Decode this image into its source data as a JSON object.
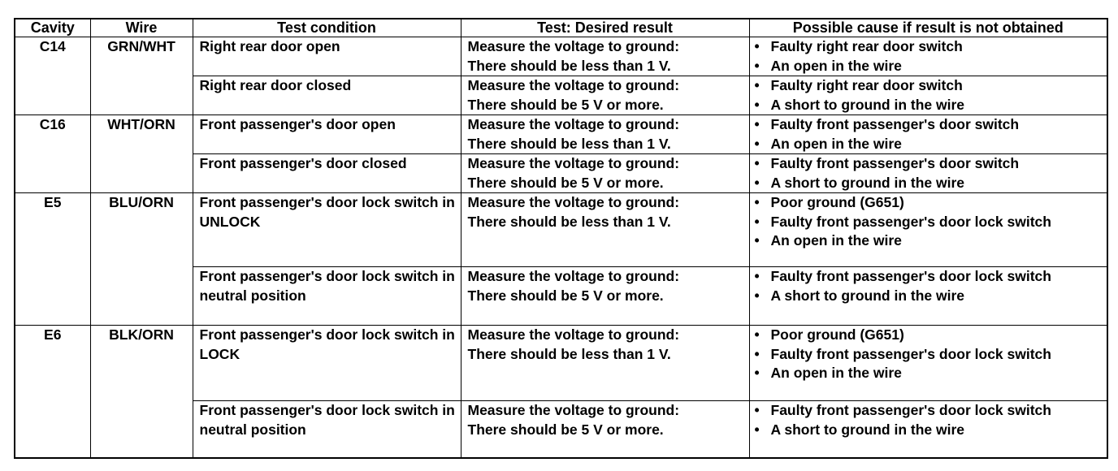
{
  "headers": [
    "Cavity",
    "Wire",
    "Test condition",
    "Test: Desired result",
    "Possible cause if result is not obtained"
  ],
  "groups": [
    {
      "cavity": "C14",
      "wire": "GRN/WHT",
      "rows": [
        {
          "condition": "Right rear door open",
          "result": "Measure the voltage to ground:\nThere should be less than 1 V.",
          "causes": [
            "Faulty right rear door switch",
            "An open in the wire"
          ]
        },
        {
          "condition": "Right rear door closed",
          "result": "Measure the voltage to ground:\nThere should be 5 V or more.",
          "causes": [
            "Faulty right rear door switch",
            "A short to ground in the wire"
          ]
        }
      ]
    },
    {
      "cavity": "C16",
      "wire": "WHT/ORN",
      "rows": [
        {
          "condition": "Front passenger's door open",
          "result": "Measure the voltage to ground:\nThere should be less than 1 V.",
          "causes": [
            "Faulty front passenger's door switch",
            "An open in the wire"
          ]
        },
        {
          "condition": "Front passenger's door closed",
          "result": "Measure the voltage to ground:\nThere should be 5 V or more.",
          "causes": [
            "Faulty front passenger's door switch",
            "A short to ground in the wire"
          ]
        }
      ]
    },
    {
      "cavity": "E5",
      "wire": "BLU/ORN",
      "rows": [
        {
          "condition": "Front passenger's door lock switch in UNLOCK",
          "result": "Measure the voltage to ground:\nThere should be less than 1 V.",
          "causes": [
            "Poor ground (G651)",
            "Faulty front passenger's door lock switch",
            "An open in the wire"
          ]
        },
        {
          "condition": "Front passenger's door lock switch in neutral position",
          "result": "Measure the voltage to ground:\nThere should be 5 V or more.",
          "causes": [
            "Faulty front passenger's door lock switch",
            "A short to ground in the wire"
          ]
        }
      ]
    },
    {
      "cavity": "E6",
      "wire": "BLK/ORN",
      "rows": [
        {
          "condition": "Front passenger's door lock switch in LOCK",
          "result": "Measure the voltage to ground:\nThere should be less than 1 V.",
          "causes": [
            "Poor ground (G651)",
            "Faulty front passenger's door lock switch",
            "An open in the wire"
          ]
        },
        {
          "condition": "Front passenger's door lock switch in neutral position",
          "result": "Measure the voltage to ground:\nThere should be 5 V or more.",
          "causes": [
            "Faulty front passenger's door lock switch",
            "A short to ground in the wire"
          ]
        }
      ]
    }
  ]
}
